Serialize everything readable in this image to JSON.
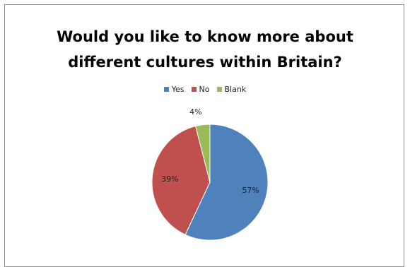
{
  "chart_data": {
    "type": "pie",
    "title_lines": [
      "Would you like to know more about",
      "different cultures within Britain?"
    ],
    "categories": [
      "Yes",
      "No",
      "Blank"
    ],
    "values": [
      57,
      39,
      4
    ],
    "data_labels": [
      "57%",
      "39%",
      "4%"
    ],
    "colors": [
      "#4f81bd",
      "#c0504d",
      "#9bbb59"
    ],
    "legend_position": "top"
  }
}
